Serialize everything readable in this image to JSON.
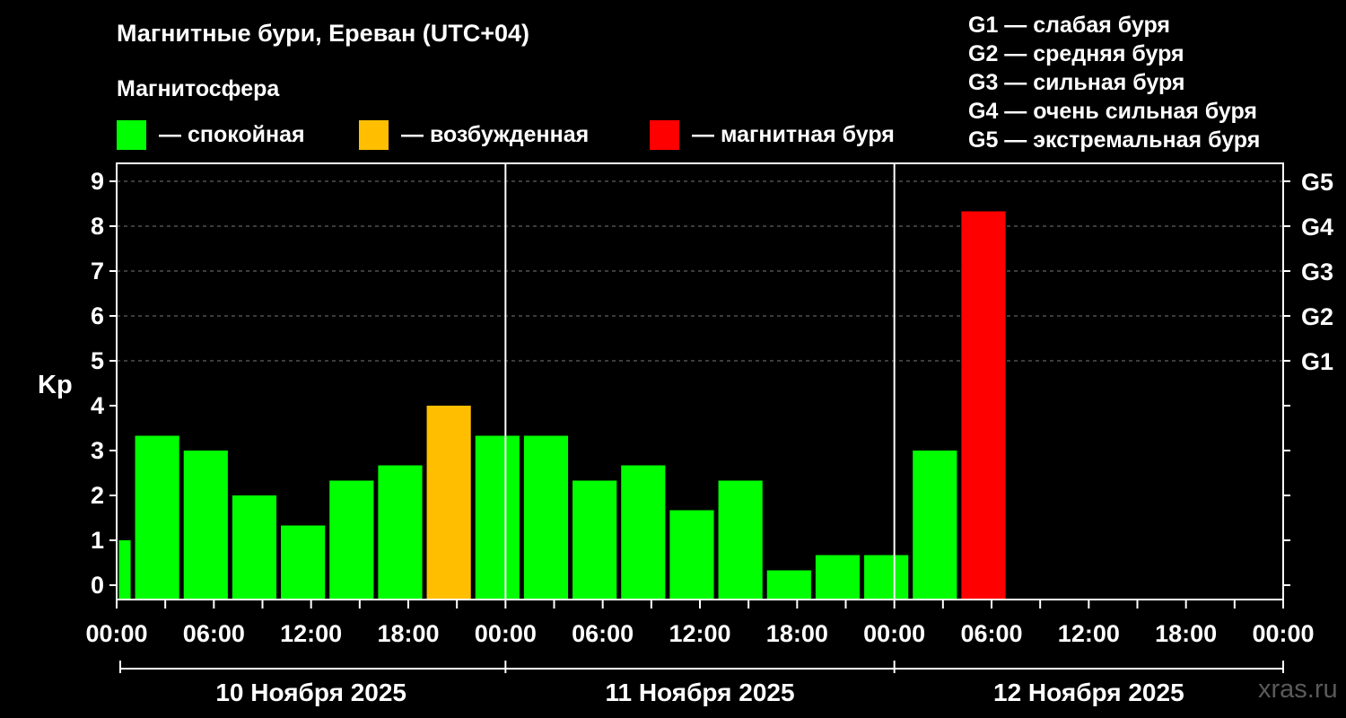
{
  "title": "Магнитные бури, Ереван (UTC+04)",
  "subtitle": "Магнитосфера",
  "legend": [
    {
      "color": "#00ff00",
      "label": "— спокойная"
    },
    {
      "color": "#ffbf00",
      "label": "— возбужденная"
    },
    {
      "color": "#ff0000",
      "label": "— магнитная буря"
    }
  ],
  "g_legend": [
    "G1 — слабая буря",
    "G2 — средняя буря",
    "G3 — сильная буря",
    "G4 — очень сильная буря",
    "G5 — экстремальная буря"
  ],
  "watermark": "xras.ru",
  "chart_data": {
    "type": "bar",
    "ylabel": "Kp",
    "ylim": [
      0,
      9
    ],
    "yticks": [
      "0",
      "1",
      "2",
      "3",
      "4",
      "5",
      "6",
      "7",
      "8",
      "9"
    ],
    "right_ticks": [
      {
        "level": 5,
        "label": "G1"
      },
      {
        "level": 6,
        "label": "G2"
      },
      {
        "level": 7,
        "label": "G3"
      },
      {
        "level": 8,
        "label": "G4"
      },
      {
        "level": 9,
        "label": "G5"
      }
    ],
    "x_tick_labels": [
      "00:00",
      "06:00",
      "12:00",
      "18:00",
      "00:00",
      "06:00",
      "12:00",
      "18:00",
      "00:00",
      "06:00",
      "12:00",
      "18:00",
      "00:00"
    ],
    "dates": [
      "10 Ноября 2025",
      "11 Ноября 2025",
      "12 Ноября 2025"
    ],
    "bars": [
      {
        "start_hour": 0,
        "end_hour": 1,
        "value": 1.0,
        "status": "calm"
      },
      {
        "start_hour": 1,
        "end_hour": 4,
        "value": 3.33,
        "status": "calm"
      },
      {
        "start_hour": 4,
        "end_hour": 7,
        "value": 3.0,
        "status": "calm"
      },
      {
        "start_hour": 7,
        "end_hour": 10,
        "value": 2.0,
        "status": "calm"
      },
      {
        "start_hour": 10,
        "end_hour": 13,
        "value": 1.33,
        "status": "calm"
      },
      {
        "start_hour": 13,
        "end_hour": 16,
        "value": 2.33,
        "status": "calm"
      },
      {
        "start_hour": 16,
        "end_hour": 19,
        "value": 2.67,
        "status": "calm"
      },
      {
        "start_hour": 19,
        "end_hour": 22,
        "value": 4.0,
        "status": "excited"
      },
      {
        "start_hour": 22,
        "end_hour": 25,
        "value": 3.33,
        "status": "calm"
      },
      {
        "start_hour": 25,
        "end_hour": 28,
        "value": 3.33,
        "status": "calm"
      },
      {
        "start_hour": 28,
        "end_hour": 31,
        "value": 2.33,
        "status": "calm"
      },
      {
        "start_hour": 31,
        "end_hour": 34,
        "value": 2.67,
        "status": "calm"
      },
      {
        "start_hour": 34,
        "end_hour": 37,
        "value": 1.67,
        "status": "calm"
      },
      {
        "start_hour": 37,
        "end_hour": 40,
        "value": 2.33,
        "status": "calm"
      },
      {
        "start_hour": 40,
        "end_hour": 43,
        "value": 0.33,
        "status": "calm"
      },
      {
        "start_hour": 43,
        "end_hour": 46,
        "value": 0.67,
        "status": "calm"
      },
      {
        "start_hour": 46,
        "end_hour": 49,
        "value": 0.67,
        "status": "calm"
      },
      {
        "start_hour": 49,
        "end_hour": 52,
        "value": 3.0,
        "status": "calm"
      },
      {
        "start_hour": 52,
        "end_hour": 55,
        "value": 8.33,
        "status": "storm"
      }
    ],
    "status_colors": {
      "calm": "#00ff00",
      "excited": "#ffbf00",
      "storm": "#ff0000"
    },
    "grid": "dashed horizontal"
  }
}
